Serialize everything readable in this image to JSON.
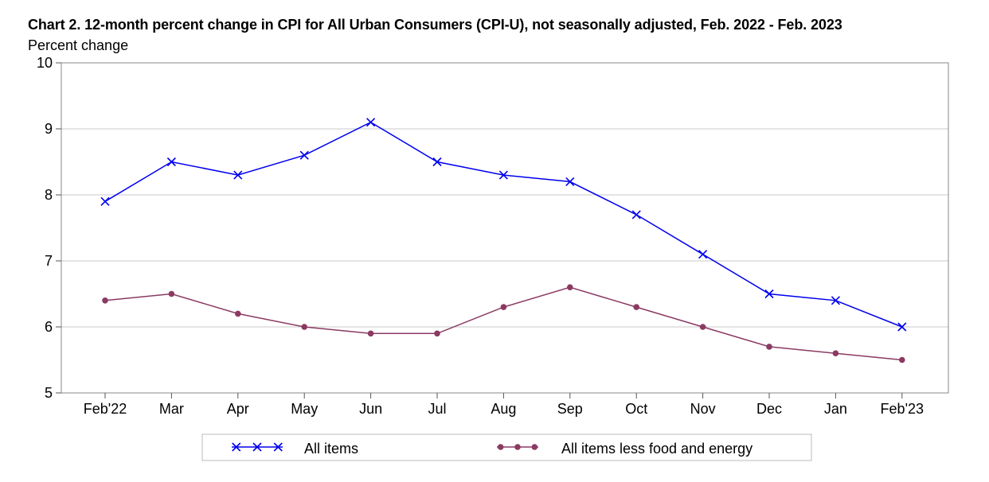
{
  "chart_data": {
    "type": "line",
    "title": "Chart 2. 12-month percent change in CPI for All Urban Consumers (CPI-U), not seasonally adjusted, Feb. 2022 - Feb. 2023",
    "ylabel": "Percent change",
    "xlabel": "",
    "categories": [
      "Feb'22",
      "Mar",
      "Apr",
      "May",
      "Jun",
      "Jul",
      "Aug",
      "Sep",
      "Oct",
      "Nov",
      "Dec",
      "Jan",
      "Feb'23"
    ],
    "ylim": [
      5,
      10
    ],
    "yticks": [
      5,
      6,
      7,
      8,
      9,
      10
    ],
    "grid": true,
    "legend_position": "bottom",
    "series": [
      {
        "name": "All items",
        "color": "#0000ee",
        "marker": "x",
        "values": [
          7.9,
          8.5,
          8.3,
          8.6,
          9.1,
          8.5,
          8.3,
          8.2,
          7.7,
          7.1,
          6.5,
          6.4,
          6.0
        ]
      },
      {
        "name": "All items less food and energy",
        "color": "#8b3a62",
        "marker": "dot",
        "values": [
          6.4,
          6.5,
          6.2,
          6.0,
          5.9,
          5.9,
          6.3,
          6.6,
          6.3,
          6.0,
          5.7,
          5.6,
          5.5
        ]
      }
    ]
  }
}
